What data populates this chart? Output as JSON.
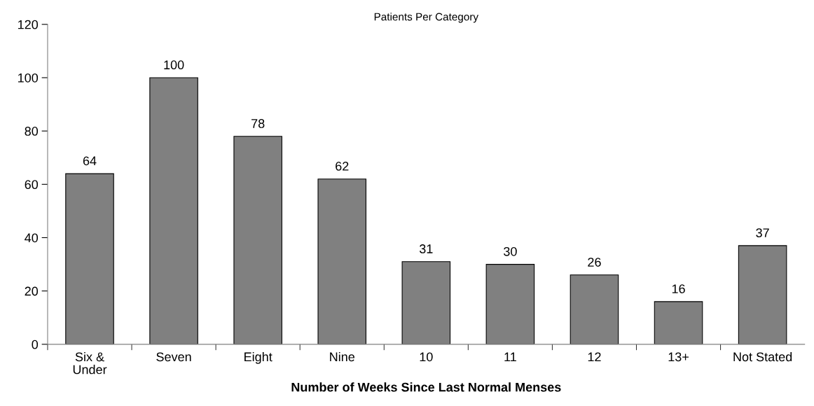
{
  "chart_data": {
    "type": "bar",
    "title": "Patients Per Category",
    "xlabel": "Number of Weeks Since Last Normal Menses",
    "categories": [
      "Six &\nUnder",
      "Seven",
      "Eight",
      "Nine",
      "10",
      "11",
      "12",
      "13+",
      "Not Stated"
    ],
    "values": [
      64,
      100,
      78,
      62,
      31,
      30,
      26,
      16,
      37
    ],
    "color": "#808080",
    "ylim": [
      0,
      120
    ],
    "yticks": [
      0,
      20,
      40,
      60,
      80,
      100,
      120
    ],
    "data_labels": true,
    "grid": false,
    "legend": false
  }
}
